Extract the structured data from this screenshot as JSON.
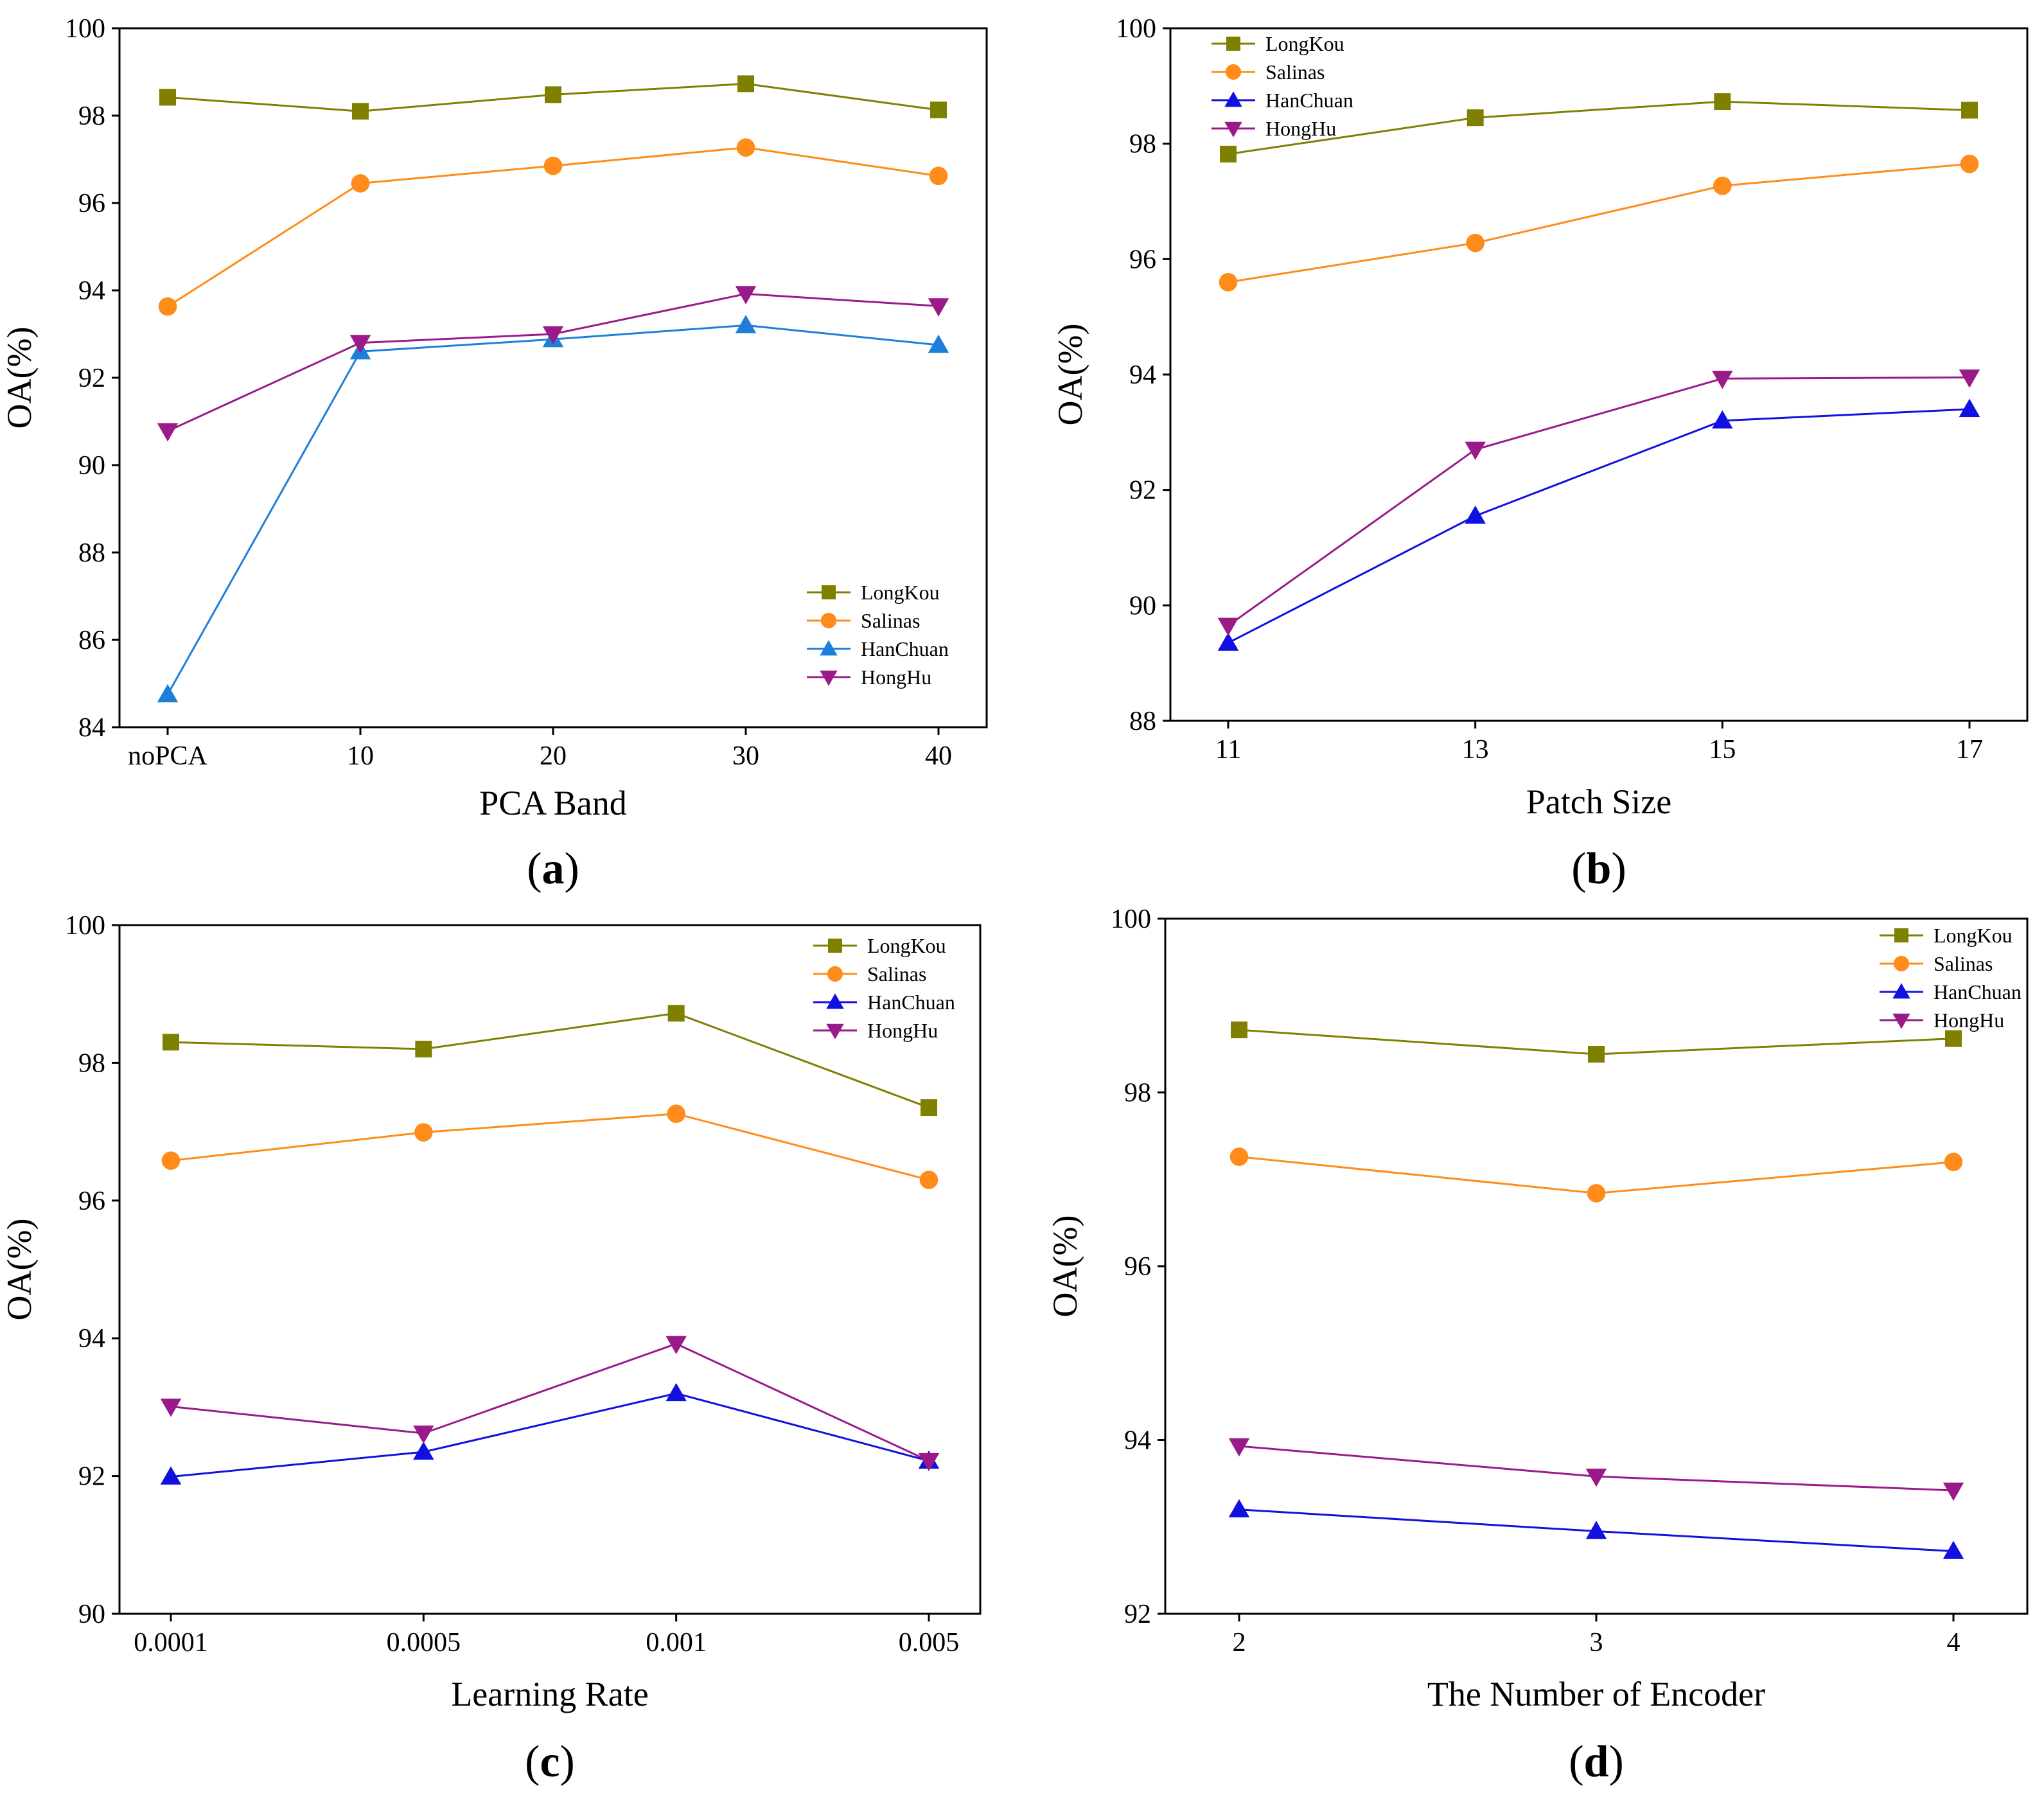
{
  "chart_data": [
    {
      "id": "a",
      "type": "line",
      "panel_label": "a",
      "xlabel": "PCA Band",
      "ylabel": "OA(%)",
      "categories": [
        "noPCA",
        "10",
        "20",
        "30",
        "40"
      ],
      "ylim": [
        84,
        100
      ],
      "yticks": [
        84,
        86,
        88,
        90,
        92,
        94,
        96,
        98,
        100
      ],
      "legend_position": "bottom-right",
      "series": [
        {
          "name": "LongKou",
          "color": "#808000",
          "marker": "square",
          "values": [
            98.42,
            98.1,
            98.48,
            98.73,
            98.13
          ]
        },
        {
          "name": "Salinas",
          "color": "#ff8c1a",
          "marker": "circle",
          "values": [
            93.63,
            96.45,
            96.85,
            97.27,
            96.62
          ]
        },
        {
          "name": "HanChuan",
          "color": "#1e7fd8",
          "marker": "triangle-up",
          "values": [
            84.75,
            92.6,
            92.88,
            93.2,
            92.75
          ]
        },
        {
          "name": "HongHu",
          "color": "#9a1a8a",
          "marker": "triangle-down",
          "values": [
            90.78,
            92.8,
            93.0,
            93.92,
            93.64
          ]
        }
      ]
    },
    {
      "id": "b",
      "type": "line",
      "panel_label": "b",
      "xlabel": "Patch Size",
      "ylabel": "OA(%)",
      "categories": [
        "11",
        "13",
        "15",
        "17"
      ],
      "ylim": [
        88,
        100
      ],
      "yticks": [
        88,
        90,
        92,
        94,
        96,
        98,
        100
      ],
      "legend_position": "top-left",
      "series": [
        {
          "name": "LongKou",
          "color": "#808000",
          "marker": "square",
          "values": [
            97.82,
            98.45,
            98.73,
            98.58
          ]
        },
        {
          "name": "Salinas",
          "color": "#ff8c1a",
          "marker": "circle",
          "values": [
            95.6,
            96.28,
            97.27,
            97.65
          ]
        },
        {
          "name": "HanChuan",
          "color": "#1010e0",
          "marker": "triangle-up",
          "values": [
            89.35,
            91.55,
            93.2,
            93.4
          ]
        },
        {
          "name": "HongHu",
          "color": "#9a1a8a",
          "marker": "triangle-down",
          "values": [
            89.65,
            92.7,
            93.93,
            93.95
          ]
        }
      ]
    },
    {
      "id": "c",
      "type": "line",
      "panel_label": "c",
      "xlabel": "Learning Rate",
      "ylabel": "OA(%)",
      "categories": [
        "0.0001",
        "0.0005",
        "0.001",
        "0.005"
      ],
      "ylim": [
        90,
        100
      ],
      "yticks": [
        90,
        92,
        94,
        96,
        98,
        100
      ],
      "legend_position": "top-right",
      "series": [
        {
          "name": "LongKou",
          "color": "#808000",
          "marker": "square",
          "values": [
            98.3,
            98.2,
            98.72,
            97.35
          ]
        },
        {
          "name": "Salinas",
          "color": "#ff8c1a",
          "marker": "circle",
          "values": [
            96.58,
            96.99,
            97.26,
            96.3
          ]
        },
        {
          "name": "HanChuan",
          "color": "#1010e0",
          "marker": "triangle-up",
          "values": [
            91.99,
            92.35,
            93.2,
            92.22
          ]
        },
        {
          "name": "HongHu",
          "color": "#9a1a8a",
          "marker": "triangle-down",
          "values": [
            93.01,
            92.62,
            93.92,
            92.22
          ]
        }
      ]
    },
    {
      "id": "d",
      "type": "line",
      "panel_label": "d",
      "xlabel": "The Number of Encoder",
      "ylabel": "OA(%)",
      "categories": [
        "2",
        "3",
        "4"
      ],
      "ylim": [
        92,
        100
      ],
      "yticks": [
        92,
        94,
        96,
        98,
        100
      ],
      "legend_position": "top-right",
      "series": [
        {
          "name": "LongKou",
          "color": "#808000",
          "marker": "square",
          "values": [
            98.72,
            98.44,
            98.62
          ]
        },
        {
          "name": "Salinas",
          "color": "#ff8c1a",
          "marker": "circle",
          "values": [
            97.26,
            96.84,
            97.2
          ]
        },
        {
          "name": "HanChuan",
          "color": "#1010e0",
          "marker": "triangle-up",
          "values": [
            93.2,
            92.95,
            92.72
          ]
        },
        {
          "name": "HongHu",
          "color": "#9a1a8a",
          "marker": "triangle-down",
          "values": [
            93.93,
            93.58,
            93.42
          ]
        }
      ]
    }
  ]
}
